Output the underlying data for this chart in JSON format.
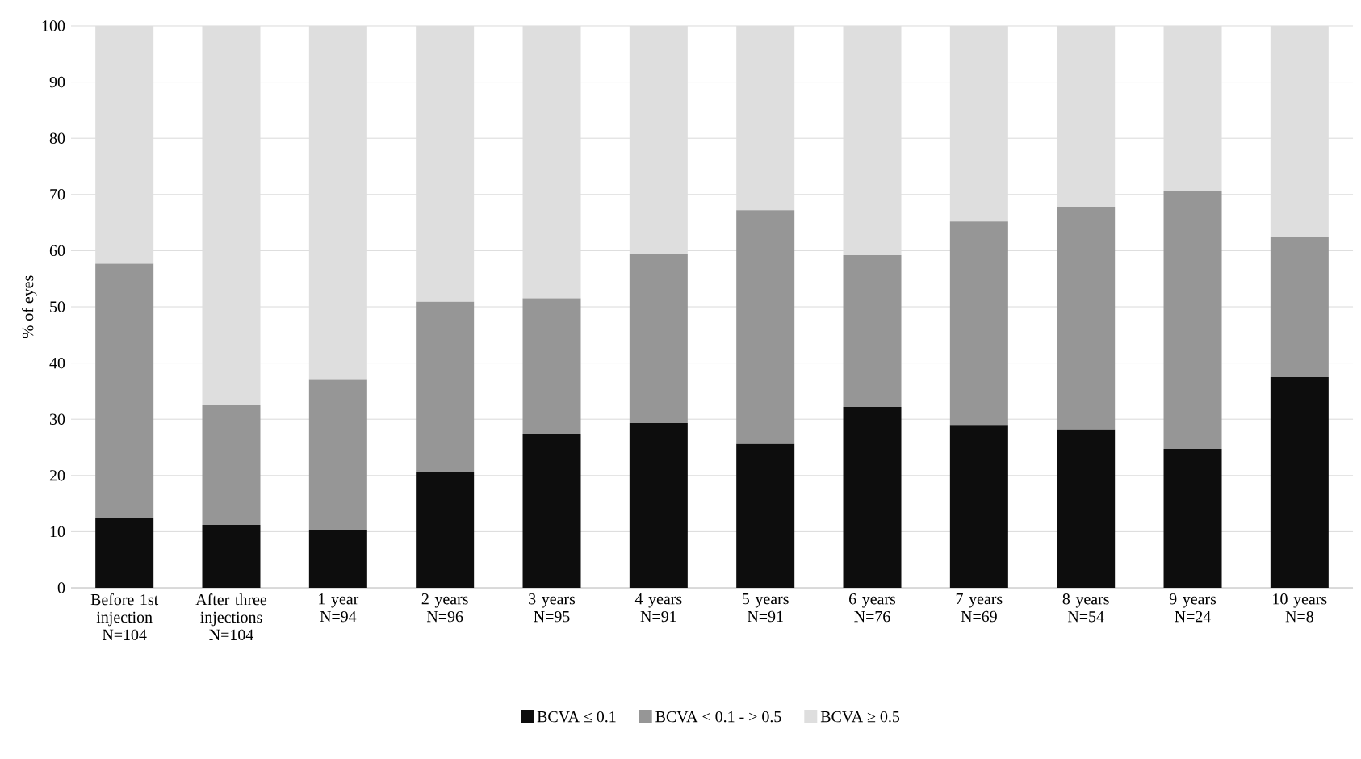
{
  "chart_data": {
    "type": "bar",
    "stacked": true,
    "ylabel": "% of eyes",
    "categories": [
      "Before 1st injection N=104",
      "After three injections N=104",
      "1 year N=94",
      "2 years N=96",
      "3 years N=95",
      "4 years N=91",
      "5 years N=91",
      "6 years N=76",
      "7 years N=69",
      "8 years N=54",
      "9 years N=24",
      "10 years N=8"
    ],
    "series": [
      {
        "name": "BCVA  ≤ 0.1",
        "color": "#0d0d0d",
        "values": [
          12.4,
          11.2,
          10.3,
          20.7,
          27.3,
          29.3,
          25.6,
          32.2,
          29.0,
          28.2,
          24.7,
          37.5
        ]
      },
      {
        "name": "BCVA  < 0.1 - > 0.5",
        "color": "#969696",
        "values": [
          45.3,
          21.3,
          26.7,
          30.2,
          24.2,
          30.2,
          41.6,
          27.0,
          36.2,
          39.6,
          46.0,
          24.9
        ]
      },
      {
        "name": "BCVA  ≥ 0.5",
        "color": "#dedede",
        "values": [
          42.3,
          67.5,
          63.0,
          49.1,
          48.5,
          40.5,
          32.8,
          40.8,
          34.8,
          32.2,
          29.3,
          37.6
        ]
      }
    ],
    "ylim": [
      0,
      100
    ],
    "yticks": [
      0,
      10,
      20,
      30,
      40,
      50,
      60,
      70,
      80,
      90,
      100
    ],
    "grid": "y",
    "legend": "bottom"
  }
}
